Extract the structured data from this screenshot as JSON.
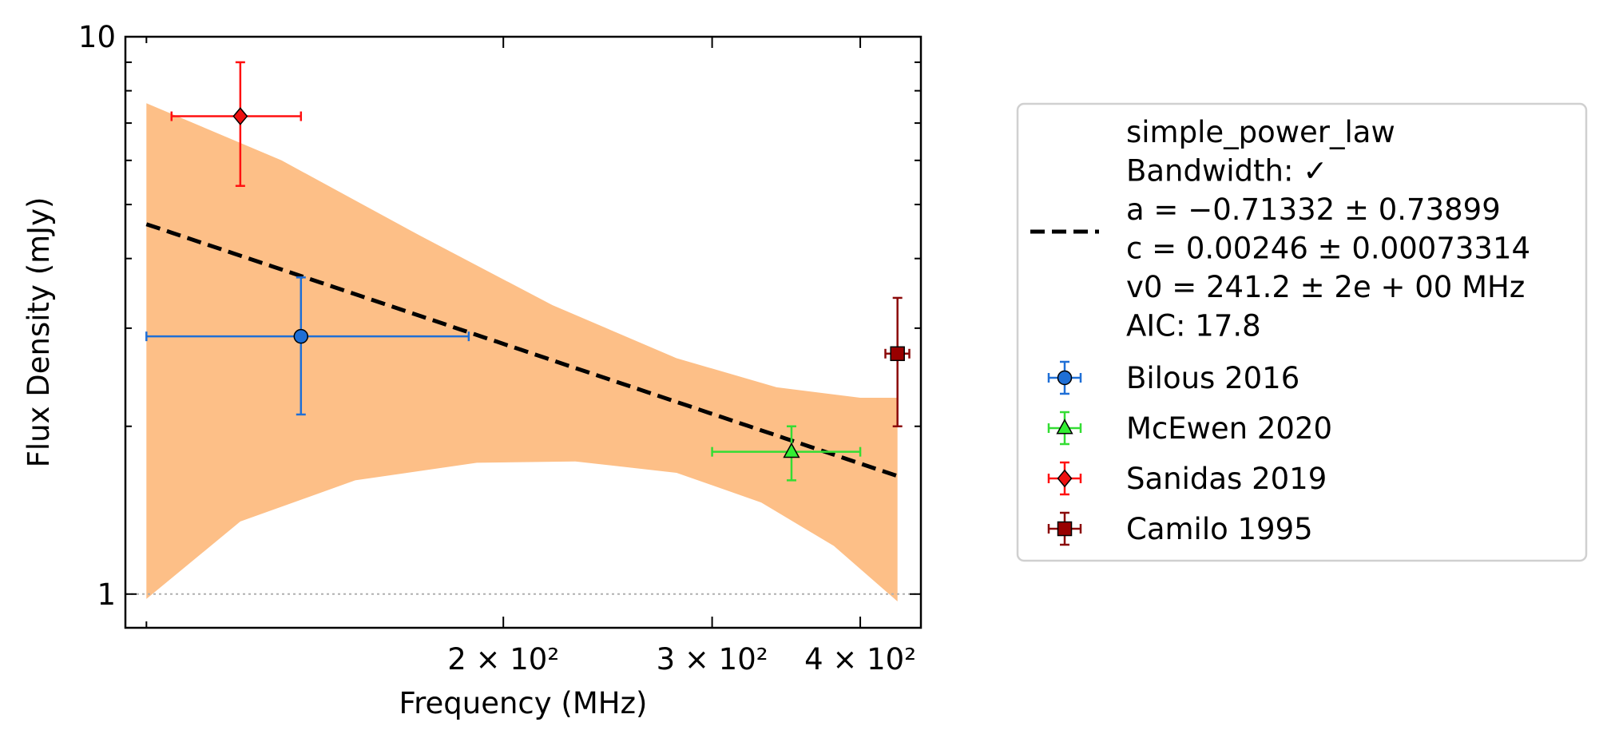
{
  "chart_data": {
    "type": "scatter",
    "title": "",
    "xlabel": "Frequency (MHz)",
    "ylabel": "Flux Density (mJy)",
    "xscale": "log",
    "yscale": "log",
    "xlim": [
      96,
      450
    ],
    "ylim": [
      0.87,
      10
    ],
    "x_ticks": [
      {
        "value": 200,
        "label": "2 × 10²"
      },
      {
        "value": 300,
        "label": "3 × 10²"
      },
      {
        "value": 400,
        "label": "4 × 10²"
      }
    ],
    "y_ticks": [
      {
        "value": 1,
        "label": "1"
      },
      {
        "value": 10,
        "label": "10"
      }
    ],
    "reference_line": {
      "y": 1,
      "style": "dotted",
      "color": "#b0b0b0"
    },
    "fit": {
      "model": "simple_power_law",
      "a": -0.71332,
      "c": 0.00246,
      "v0": 241.2,
      "x_range": [
        100,
        430
      ],
      "band_upper": [
        [
          100,
          7.6
        ],
        [
          130,
          6.0
        ],
        [
          170,
          4.4
        ],
        [
          220,
          3.3
        ],
        [
          280,
          2.65
        ],
        [
          340,
          2.35
        ],
        [
          400,
          2.25
        ],
        [
          430,
          2.25
        ]
      ],
      "band_lower": [
        [
          100,
          0.98
        ],
        [
          120,
          1.35
        ],
        [
          150,
          1.6
        ],
        [
          190,
          1.72
        ],
        [
          230,
          1.73
        ],
        [
          280,
          1.65
        ],
        [
          330,
          1.46
        ],
        [
          380,
          1.22
        ],
        [
          430,
          0.97
        ]
      ],
      "band_color": "#fdbf87",
      "line_color": "#000000"
    },
    "series": [
      {
        "name": "Bilous 2016",
        "marker": "circle",
        "color": "#1f6fd6",
        "fill": "#1f6fd6",
        "points": [
          {
            "x": 135,
            "y": 2.9,
            "xerr": [
              35,
              52
            ],
            "yerr": [
              0.8,
              0.8
            ]
          }
        ]
      },
      {
        "name": "McEwen 2020",
        "marker": "triangle",
        "color": "#33dd33",
        "fill": "#33ee33",
        "points": [
          {
            "x": 350,
            "y": 1.8,
            "xerr": [
              50,
              50
            ],
            "yerr": [
              0.2,
              0.2
            ]
          }
        ]
      },
      {
        "name": "Sanidas 2019",
        "marker": "diamond",
        "color": "#ff1010",
        "fill": "#ee1111",
        "points": [
          {
            "x": 120,
            "y": 7.2,
            "xerr": [
              15,
              15
            ],
            "yerr": [
              1.8,
              1.8
            ]
          }
        ]
      },
      {
        "name": "Camilo 1995",
        "marker": "square",
        "color": "#8b0a0a",
        "fill": "#990000",
        "points": [
          {
            "x": 430,
            "y": 2.7,
            "xerr": [
              10,
              10
            ],
            "yerr": [
              0.7,
              0.7
            ]
          }
        ]
      }
    ],
    "legend": {
      "placement": "right",
      "fit_lines": [
        "simple_power_law",
        "Bandwidth: ✓",
        "a = −0.71332 ± 0.73899",
        "c = 0.00246 ± 0.00073314",
        "v0 = 241.2 ± 2e + 00 MHz",
        "AIC: 17.8"
      ]
    },
    "grid": false
  }
}
